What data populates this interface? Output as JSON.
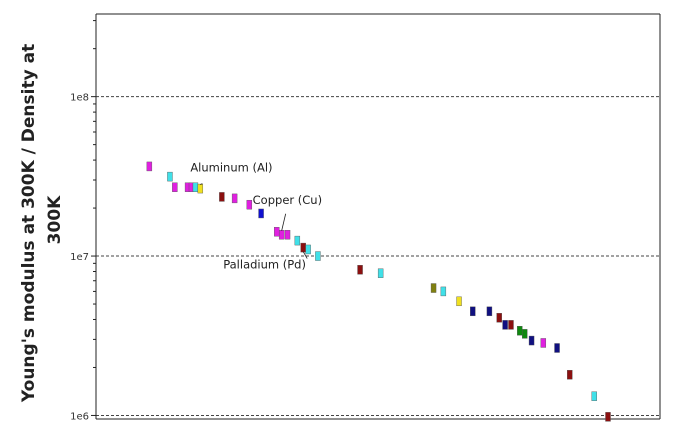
{
  "chart_data": {
    "type": "scatter",
    "title": "",
    "xlabel": "",
    "ylabel_lines": [
      "Young's modulus at 300K / Density at",
      "300K"
    ],
    "yscale": "log",
    "ylim": [
      950000,
      330000000
    ],
    "xlim": [
      0,
      55
    ],
    "y_ticks": [
      {
        "value": 1000000,
        "label": "1e6"
      },
      {
        "value": 10000000,
        "label": "1e7"
      },
      {
        "value": 100000000,
        "label": "1e8"
      }
    ],
    "grid": "horizontal dashed at major ticks",
    "points": [
      {
        "x": 3.2,
        "y": 36500000,
        "color": "#e020e0"
      },
      {
        "x": 5.3,
        "y": 31500000,
        "color": "#40e0e8"
      },
      {
        "x": 5.8,
        "y": 27000000,
        "color": "#e020e0"
      },
      {
        "x": 7.1,
        "y": 27000000,
        "color": "#e020e0"
      },
      {
        "x": 7.5,
        "y": 27000000,
        "color": "#e020e0"
      },
      {
        "x": 7.9,
        "y": 27000000,
        "color": "#40e0e8"
      },
      {
        "x": 8.4,
        "y": 26500000,
        "color": "#f0e020"
      },
      {
        "x": 10.6,
        "y": 23500000,
        "color": "#8b1010"
      },
      {
        "x": 11.9,
        "y": 23000000,
        "color": "#e020e0"
      },
      {
        "x": 13.4,
        "y": 21000000,
        "color": "#e020e0"
      },
      {
        "x": 14.6,
        "y": 18500000,
        "color": "#1010d0"
      },
      {
        "x": 16.2,
        "y": 14200000,
        "color": "#e020e0"
      },
      {
        "x": 16.7,
        "y": 13600000,
        "color": "#e020e0"
      },
      {
        "x": 17.3,
        "y": 13600000,
        "color": "#e020e0"
      },
      {
        "x": 18.3,
        "y": 12500000,
        "color": "#40e0e8"
      },
      {
        "x": 18.9,
        "y": 11300000,
        "color": "#8b1010"
      },
      {
        "x": 19.4,
        "y": 11000000,
        "color": "#40e0e8"
      },
      {
        "x": 20.4,
        "y": 10000000,
        "color": "#40e0e8"
      },
      {
        "x": 24.7,
        "y": 8200000,
        "color": "#8b1010"
      },
      {
        "x": 26.8,
        "y": 7800000,
        "color": "#40e0e8"
      },
      {
        "x": 32.2,
        "y": 6300000,
        "color": "#808010"
      },
      {
        "x": 33.2,
        "y": 6000000,
        "color": "#40e0e8"
      },
      {
        "x": 34.8,
        "y": 5200000,
        "color": "#f0e020"
      },
      {
        "x": 36.2,
        "y": 4500000,
        "color": "#101080"
      },
      {
        "x": 37.9,
        "y": 4500000,
        "color": "#101080"
      },
      {
        "x": 38.9,
        "y": 4100000,
        "color": "#8b1010"
      },
      {
        "x": 39.5,
        "y": 3700000,
        "color": "#101080"
      },
      {
        "x": 40.1,
        "y": 3700000,
        "color": "#8b1010"
      },
      {
        "x": 41.0,
        "y": 3400000,
        "color": "#108810"
      },
      {
        "x": 41.5,
        "y": 3250000,
        "color": "#108810"
      },
      {
        "x": 42.2,
        "y": 2950000,
        "color": "#101080"
      },
      {
        "x": 43.4,
        "y": 2850000,
        "color": "#e020e0"
      },
      {
        "x": 44.8,
        "y": 2650000,
        "color": "#101080"
      },
      {
        "x": 46.1,
        "y": 1800000,
        "color": "#8b1010"
      },
      {
        "x": 48.6,
        "y": 1320000,
        "color": "#40e0e8"
      },
      {
        "x": 50.0,
        "y": 980000,
        "color": "#8b1010"
      }
    ],
    "annotations": [
      {
        "text": "Aluminum (Al)",
        "point_index": 6
      },
      {
        "text": "Copper (Cu)",
        "point_index": 12
      },
      {
        "text": "Palladium (Pd)",
        "point_index": 15
      }
    ]
  }
}
